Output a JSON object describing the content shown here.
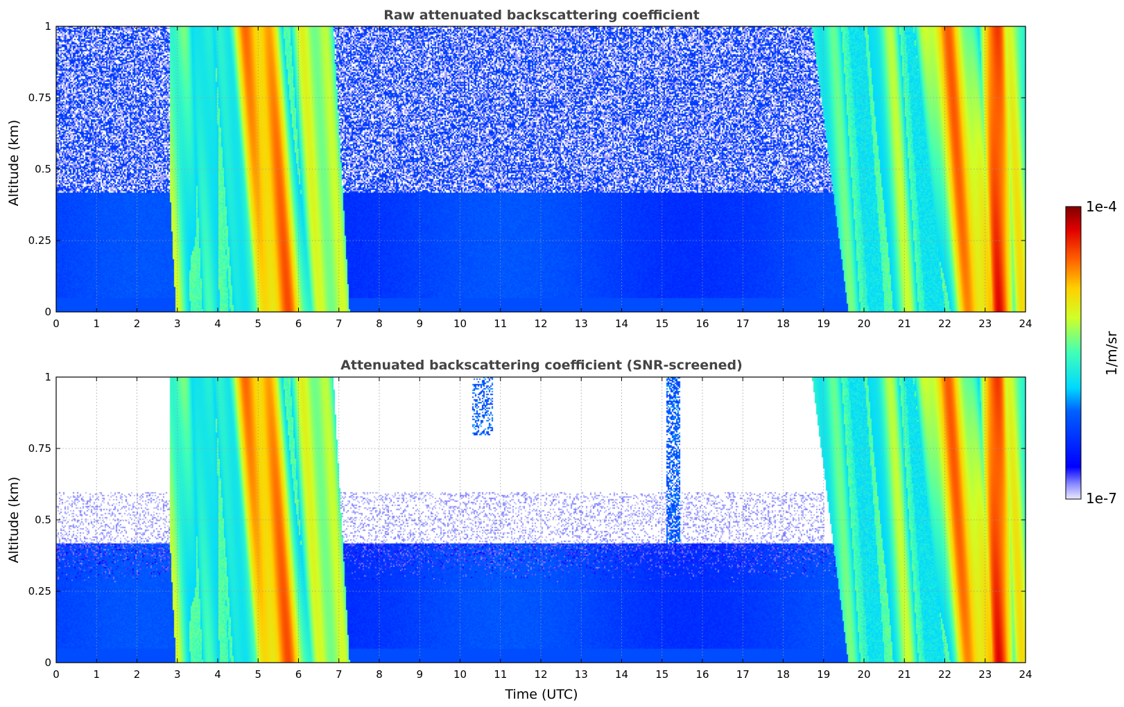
{
  "chart_data": [
    {
      "type": "heatmap",
      "title": "Raw attenuated backscattering coefficient",
      "xlabel": "",
      "ylabel": "Altitude (km)",
      "xlim": [
        0,
        24
      ],
      "ylim": [
        0,
        1
      ],
      "xticks": [
        "0",
        "1",
        "2",
        "3",
        "4",
        "5",
        "6",
        "7",
        "8",
        "9",
        "10",
        "11",
        "12",
        "13",
        "14",
        "15",
        "16",
        "17",
        "18",
        "19",
        "20",
        "21",
        "22",
        "23",
        "24"
      ],
      "yticks": [
        "0",
        "0.25",
        "0.5",
        "0.75",
        "1"
      ],
      "grid": true,
      "screened": false,
      "features": {
        "plumes": [
          {
            "t_bottom": 3.0,
            "t_top": 2.9,
            "width": 0.55,
            "level": 0.55
          },
          {
            "t_bottom": 3.9,
            "t_top": 3.6,
            "width": 0.35,
            "level": 0.5
          },
          {
            "t_bottom": 4.8,
            "t_top": 4.3,
            "width": 0.5,
            "level": 0.5
          },
          {
            "t_bottom": 5.6,
            "t_top": 4.9,
            "width": 0.8,
            "level": 0.78
          },
          {
            "t_bottom": 6.8,
            "t_top": 6.3,
            "width": 0.7,
            "level": 0.62
          },
          {
            "t_bottom": 19.5,
            "t_top": 19.0,
            "width": 0.6,
            "level": 0.5
          },
          {
            "t_bottom": 21.0,
            "t_top": 20.5,
            "width": 0.5,
            "level": 0.55
          },
          {
            "t_bottom": 22.8,
            "t_top": 22.0,
            "width": 0.8,
            "level": 0.75
          },
          {
            "t_bottom": 23.4,
            "t_top": 23.2,
            "width": 0.35,
            "level": 0.9
          },
          {
            "t_bottom": 23.9,
            "t_top": 23.7,
            "width": 0.4,
            "level": 0.62
          }
        ],
        "background_level_low": 0.3,
        "noise_above_km": 0.42
      }
    },
    {
      "type": "heatmap",
      "title": "Attenuated backscattering coefficient (SNR-screened)",
      "xlabel": "Time (UTC)",
      "ylabel": "Altitude (km)",
      "xlim": [
        0,
        24
      ],
      "ylim": [
        0,
        1
      ],
      "xticks": [
        "0",
        "1",
        "2",
        "3",
        "4",
        "5",
        "6",
        "7",
        "8",
        "9",
        "10",
        "11",
        "12",
        "13",
        "14",
        "15",
        "16",
        "17",
        "18",
        "19",
        "20",
        "21",
        "22",
        "23",
        "24"
      ],
      "yticks": [
        "0",
        "0.25",
        "0.5",
        "0.75",
        "1"
      ],
      "grid": true,
      "screened": true
    }
  ],
  "colorbar": {
    "label": "1/m/sr",
    "min_label": "1e-7",
    "max_label": "1e-4",
    "colormap": "jet",
    "scale": "log",
    "range": [
      1e-07,
      0.0001
    ]
  }
}
